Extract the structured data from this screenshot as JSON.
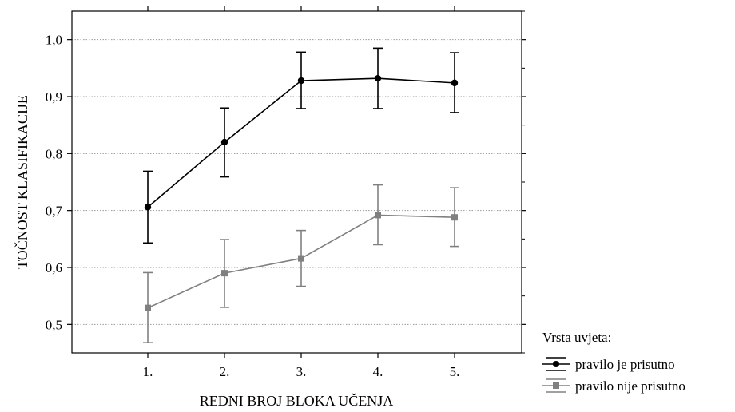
{
  "chart_data": {
    "type": "line",
    "title": "",
    "xlabel": "REDNI BROJ BLOKA UČENJA",
    "ylabel": "TOČNOST KLASIFIKACIJE",
    "categories": [
      "1.",
      "2.",
      "3.",
      "4.",
      "5."
    ],
    "ylim": [
      0.45,
      1.05
    ],
    "y_ticks": [
      0.5,
      0.6,
      0.7,
      0.8,
      0.9,
      1.0
    ],
    "y_tick_labels": [
      "0,5",
      "0,6",
      "0,7",
      "0,8",
      "0,9",
      "1,0"
    ],
    "grid": "horizontal dotted",
    "legend_position": "bottom-right outside",
    "legend_title": "Vrsta uvjeta:",
    "series": [
      {
        "name": "pravilo je prisutno",
        "color": "#000000",
        "marker": "circle",
        "values": [
          0.706,
          0.82,
          0.928,
          0.932,
          0.924
        ],
        "error_low": [
          0.643,
          0.759,
          0.879,
          0.879,
          0.872
        ],
        "error_high": [
          0.769,
          0.88,
          0.978,
          0.985,
          0.977
        ]
      },
      {
        "name": "pravilo nije prisutno",
        "color": "#808080",
        "marker": "square",
        "values": [
          0.529,
          0.59,
          0.616,
          0.692,
          0.688
        ],
        "error_low": [
          0.468,
          0.53,
          0.567,
          0.64,
          0.637
        ],
        "error_high": [
          0.591,
          0.649,
          0.665,
          0.745,
          0.74
        ]
      }
    ]
  }
}
